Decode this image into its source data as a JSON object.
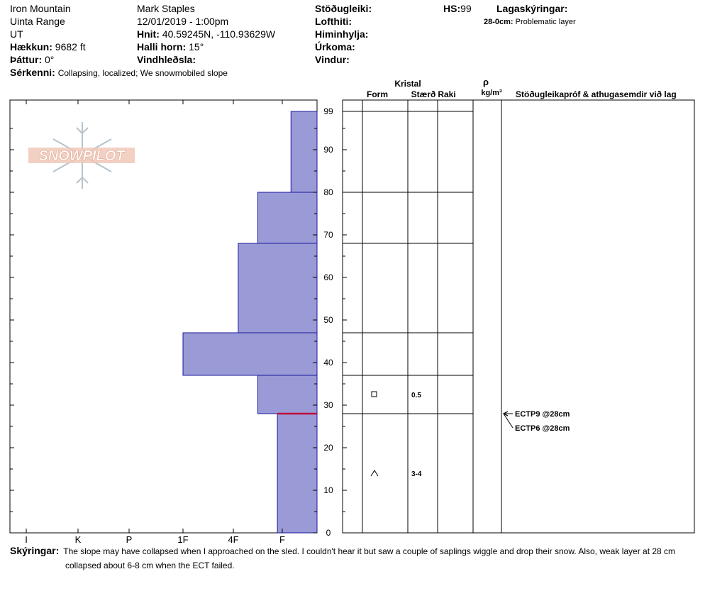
{
  "header": {
    "location": "Iron Mountain",
    "range": "Uinta Range",
    "state": "UT",
    "elevation_label": "Hækkun:",
    "elevation_value": "9682 ft",
    "aspect_label": "Þáttur:",
    "aspect_value": "0°",
    "features_label": "Sérkenni:",
    "features_value": "Collapsing, localized;  We snowmobiled slope",
    "observer": "Mark Staples",
    "datetime": "12/01/2019 - 1:00pm",
    "coords_label": "Hnit:",
    "coords_value": "40.59245N, -110.93629W",
    "slope_label": "Halli horn:",
    "slope_value": "15°",
    "wind_loading_label": "Vindhleðsla:",
    "stability_label": "Stöðugleiki:",
    "air_temp_label": "Lofthiti:",
    "sky_label": "Himinhylja:",
    "precip_label": "Úrkoma:",
    "wind_label": "Vindur:",
    "hs_label": "HS:",
    "hs_value": "99",
    "legend_label": "Lagaskýringar:",
    "legend_item_depth": "28-0cm:",
    "legend_item_text": "Problematic layer"
  },
  "logo_text": "SNOWPILOT",
  "columns": {
    "crystal": "Kristal",
    "form": "Form",
    "size": "Stærð",
    "moisture": "Raki",
    "rho": "ρ",
    "density_unit": "kg/m³",
    "tests": "Stöðugleikapróf & athugasemdir við lag"
  },
  "chart_data": {
    "type": "snow-profile",
    "hardness_labels": [
      "I",
      "K",
      "P",
      "1F",
      "4F",
      "F"
    ],
    "depth_range": [
      0,
      99
    ],
    "depth_ticks": [
      0,
      10,
      20,
      30,
      40,
      50,
      60,
      70,
      80,
      90,
      99
    ],
    "layers": [
      {
        "top": 99,
        "bottom": 80,
        "hardness": 0.75
      },
      {
        "top": 80,
        "bottom": 68,
        "hardness": 1.5
      },
      {
        "top": 68,
        "bottom": 47,
        "hardness": 1.9
      },
      {
        "top": 47,
        "bottom": 37,
        "hardness": 3.0
      },
      {
        "top": 37,
        "bottom": 28,
        "hardness": 1.5
      },
      {
        "top": 28,
        "bottom": 0,
        "hardness": 1.1
      }
    ],
    "problem_layer_depth": 28,
    "grains": [
      {
        "depth": 32.5,
        "form": "square",
        "size": "0.5"
      },
      {
        "depth": 14,
        "form": "caret",
        "size": "3-4"
      }
    ],
    "tests": [
      {
        "depth": 28,
        "label": "ECTP9 @28cm"
      },
      {
        "depth": 28,
        "label": "ECTP6 @28cm"
      }
    ],
    "colors": {
      "fill": "#9a9ad6",
      "stroke": "#1a1aa0",
      "problem": "#c0103a"
    }
  },
  "footer": {
    "label": "Skýringar:",
    "text_line1": "The slope may have collapsed when I approached on the sled. I couldn't hear it but saw a couple of saplings wiggle and drop their snow. Also, weak layer at 28 cm",
    "text_line2": "collapsed about 6-8 cm when the ECT failed."
  }
}
